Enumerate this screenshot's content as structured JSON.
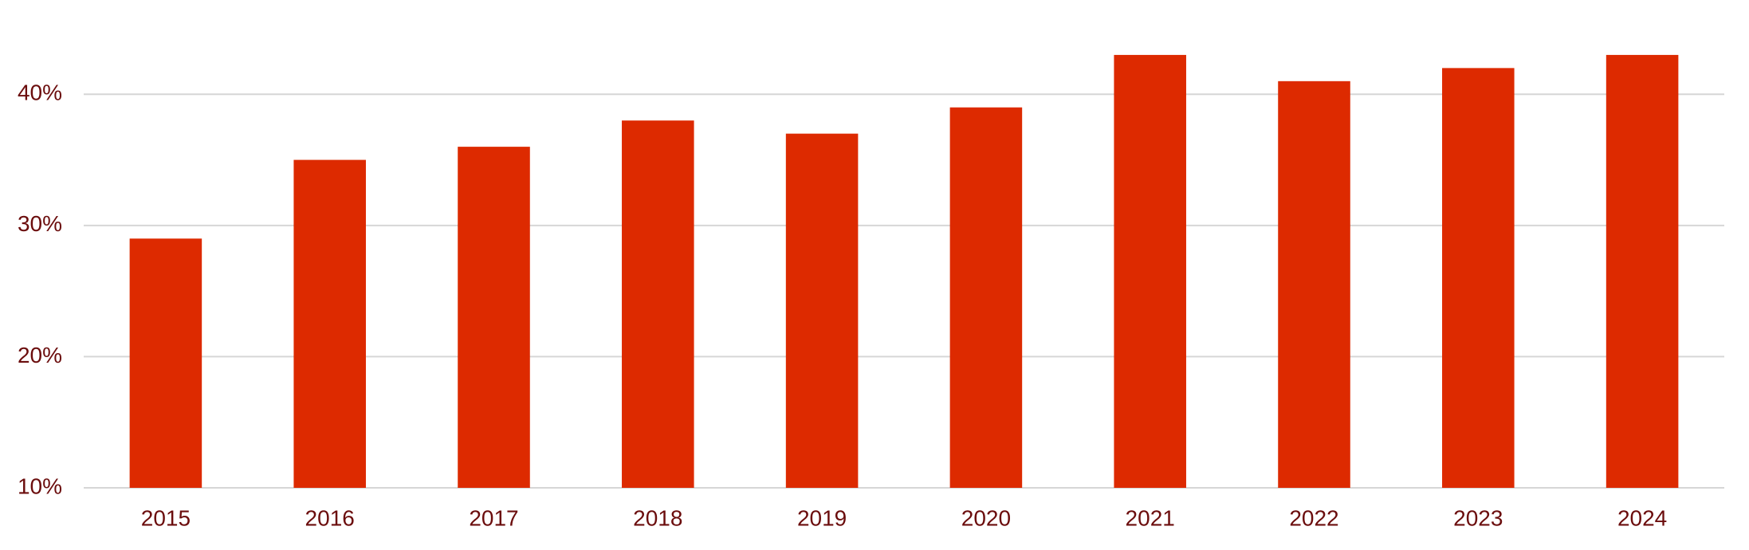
{
  "chart_data": {
    "type": "bar",
    "categories": [
      "2015",
      "2016",
      "2017",
      "2018",
      "2019",
      "2020",
      "2021",
      "2022",
      "2023",
      "2024"
    ],
    "values": [
      29,
      35,
      36,
      38,
      37,
      39,
      43,
      41,
      42,
      43
    ],
    "color": "#dd2a00",
    "ylim": [
      10,
      45
    ],
    "yticks": [
      {
        "value": 10,
        "label": "10%"
      },
      {
        "value": 20,
        "label": "20%"
      },
      {
        "value": 30,
        "label": "30%"
      },
      {
        "value": 40,
        "label": "40%"
      }
    ],
    "grid": true
  }
}
